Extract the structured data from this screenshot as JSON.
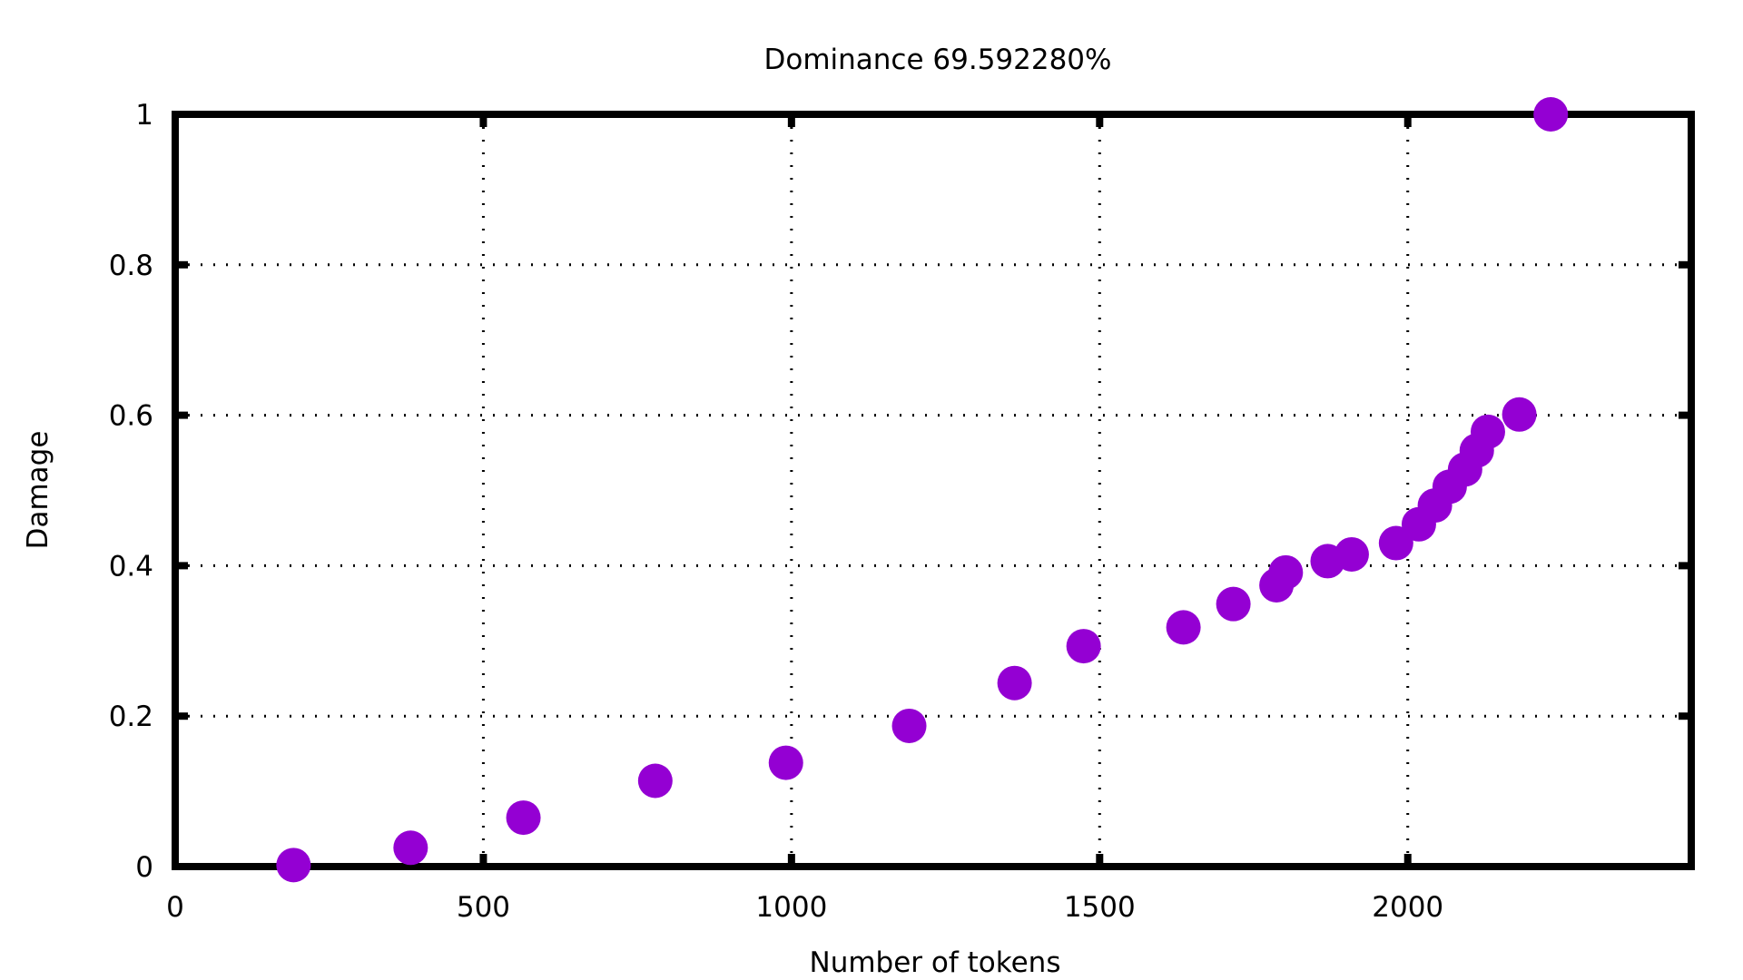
{
  "chart_data": {
    "type": "scatter",
    "title": "Dominance 69.592280%",
    "xlabel": "Number of tokens",
    "ylabel": "Damage",
    "xlim": [
      0,
      2460
    ],
    "ylim": [
      0,
      1
    ],
    "xticks": [
      0,
      500,
      1000,
      1500,
      2000
    ],
    "xtick_labels": [
      "0",
      "500",
      "1000",
      "1500",
      "2000"
    ],
    "yticks": [
      0,
      0.2,
      0.4,
      0.6,
      0.8,
      1
    ],
    "ytick_labels": [
      "0",
      "0.2",
      "0.4",
      "0.6",
      "0.8",
      "1"
    ],
    "grid": true,
    "marker_color": "#9400D3",
    "series": [
      {
        "points": [
          {
            "x": 192,
            "y": 0.002
          },
          {
            "x": 382,
            "y": 0.025
          },
          {
            "x": 565,
            "y": 0.065
          },
          {
            "x": 779,
            "y": 0.114
          },
          {
            "x": 991,
            "y": 0.138
          },
          {
            "x": 1191,
            "y": 0.187
          },
          {
            "x": 1362,
            "y": 0.244
          },
          {
            "x": 1474,
            "y": 0.293
          },
          {
            "x": 1636,
            "y": 0.318
          },
          {
            "x": 1717,
            "y": 0.349
          },
          {
            "x": 1787,
            "y": 0.374
          },
          {
            "x": 1802,
            "y": 0.391
          },
          {
            "x": 1870,
            "y": 0.406
          },
          {
            "x": 1909,
            "y": 0.415
          },
          {
            "x": 1981,
            "y": 0.43
          },
          {
            "x": 2018,
            "y": 0.455
          },
          {
            "x": 2044,
            "y": 0.48
          },
          {
            "x": 2068,
            "y": 0.505
          },
          {
            "x": 2093,
            "y": 0.528
          },
          {
            "x": 2112,
            "y": 0.553
          },
          {
            "x": 2130,
            "y": 0.578
          },
          {
            "x": 2181,
            "y": 0.601
          },
          {
            "x": 2232,
            "y": 1.0
          }
        ]
      }
    ]
  }
}
